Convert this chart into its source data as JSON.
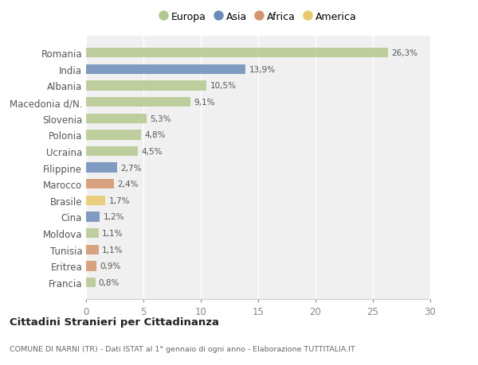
{
  "categories": [
    "Romania",
    "India",
    "Albania",
    "Macedonia d/N.",
    "Slovenia",
    "Polonia",
    "Ucraina",
    "Filippine",
    "Marocco",
    "Brasile",
    "Cina",
    "Moldova",
    "Tunisia",
    "Eritrea",
    "Francia"
  ],
  "values": [
    26.3,
    13.9,
    10.5,
    9.1,
    5.3,
    4.8,
    4.5,
    2.7,
    2.4,
    1.7,
    1.2,
    1.1,
    1.1,
    0.9,
    0.8
  ],
  "labels": [
    "26,3%",
    "13,9%",
    "10,5%",
    "9,1%",
    "5,3%",
    "4,8%",
    "4,5%",
    "2,7%",
    "2,4%",
    "1,7%",
    "1,2%",
    "1,1%",
    "1,1%",
    "0,9%",
    "0,8%"
  ],
  "colors": [
    "#b5c98e",
    "#6b8cba",
    "#b5c98e",
    "#b5c98e",
    "#b5c98e",
    "#b5c98e",
    "#b5c98e",
    "#6b8cba",
    "#d4956a",
    "#e8c86a",
    "#6b8cba",
    "#b5c98e",
    "#d4956a",
    "#d4956a",
    "#b5c98e"
  ],
  "legend_labels": [
    "Europa",
    "Asia",
    "Africa",
    "America"
  ],
  "legend_colors": [
    "#b5c98e",
    "#6b8cba",
    "#d4956a",
    "#e8c86a"
  ],
  "xlim": [
    0,
    30
  ],
  "xticks": [
    0,
    5,
    10,
    15,
    20,
    25,
    30
  ],
  "title": "Cittadini Stranieri per Cittadinanza",
  "subtitle": "COMUNE DI NARNI (TR) - Dati ISTAT al 1° gennaio di ogni anno - Elaborazione TUTTITALIA.IT",
  "bg_color": "#ffffff",
  "plot_bg_color": "#f0f0f0",
  "grid_color": "#ffffff",
  "bar_height": 0.6
}
